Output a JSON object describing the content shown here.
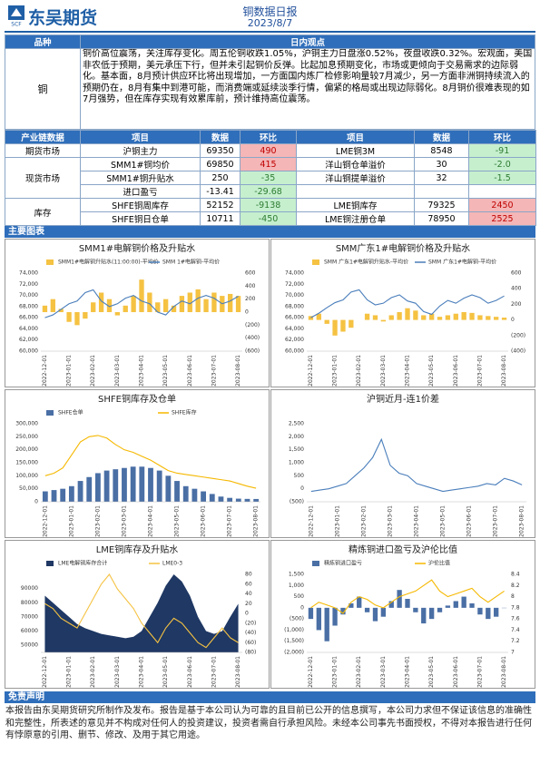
{
  "header": {
    "logo": "东吴期货",
    "logo_mark": "SCF",
    "title": "铜数据日报",
    "date": "2023/8/7"
  },
  "view": {
    "col1": "品种",
    "col2": "日内观点",
    "variety": "铜",
    "text": "铜价高位震荡，关注库存变化。周五伦铜收跌1.05%，沪铜主力日盘涨0.52%，夜盘收跌0.32%。宏观面，美国非农低于预期，美元承压下行，但并未引起铜价反弹。比起加息预期变化，市场或更倾向于交易需求的边际弱化。基本面，8月预计供应环比将出现增加，一方面国内炼厂检修影响量较7月减少，另一方面非洲铜持续流入的预期仍在，8月有集中到港可能，而消费端或延续淡季行情，偏紧的格局或出现边际弱化。8月铜价很难表现的如7月强势，但在库存实现有效累库前，预计维持高位震荡。"
  },
  "table": {
    "header": [
      "产业链数据",
      "项目",
      "数据",
      "环比",
      "项目",
      "数据",
      "环比"
    ],
    "rows": [
      [
        "期货市场",
        "沪铜主力",
        "69350",
        "490",
        "LME铜3M",
        "8548",
        "-91"
      ],
      [
        "现货市场",
        "SMM1#铜均价",
        "69850",
        "415",
        "洋山铜仓单溢价",
        "30",
        "-2.0"
      ],
      [
        "SMM1#铜升贴水",
        "250",
        "-35",
        "洋山铜提单溢价",
        "32",
        "-1.5"
      ],
      [
        "进口盈亏",
        "-13.41",
        "-29.68"
      ],
      [
        "库存",
        "SHFE铜周库存",
        "52152",
        "-9138",
        "LME铜库存",
        "79325",
        "2450"
      ],
      [
        "SHFE铜日仓单",
        "10711",
        "-450",
        "LME铜注册仓单",
        "78950",
        "2525"
      ]
    ]
  },
  "sections": {
    "charts": "主要图表",
    "disclaimer": "免责声明"
  },
  "disclaimer": {
    "text": "本报告由东吴期货研究所制作及发布。报告是基于本公司认为可靠的且目前已公开的信息撰写，本公司力求但不保证该信息的准确性和完整性，所表述的意见并不构成对任何人的投资建议，投资者需自行承担风险。未经本公司事先书面授权，不得对本报告进行任何有悖原意的引用、删节、修改、及用于其它用途。"
  },
  "chart_data": [
    {
      "type": "combo",
      "title": "SMM1#电解铜价格及升贴水",
      "categories": [
        "2022-12-01",
        null,
        null,
        "2023-01-01",
        null,
        null,
        "2023-02-01",
        null,
        null,
        "2023-03-01",
        null,
        null,
        "2023-04-01",
        null,
        null,
        "2023-05-01",
        null,
        null,
        "2023-06-01",
        null,
        null,
        "2023-07-01",
        null,
        null,
        "2023-08-01"
      ],
      "ylim": [
        60000,
        74000
      ],
      "yticks": [
        {
          "value": 74000,
          "label": "74,000"
        },
        {
          "value": 72000,
          "label": "72,000"
        },
        {
          "value": 70000,
          "label": "70,000"
        },
        {
          "value": 68000,
          "label": "68,000"
        },
        {
          "value": 66000,
          "label": "66,000"
        },
        {
          "value": 64000,
          "label": "64,000"
        },
        {
          "value": 62000,
          "label": "62,000"
        },
        {
          "value": 60000,
          "label": "60,000"
        }
      ],
      "y2lim": [
        -600,
        600
      ],
      "y2ticks": [
        600,
        400,
        200,
        0,
        {
          "value": -200,
          "label": "(200)"
        },
        {
          "value": -400,
          "label": "(400)"
        },
        {
          "value": -600,
          "label": "(600)"
        }
      ],
      "series": [
        {
          "name": "SMM1#电解铜升贴水(11:00:00)-平均价",
          "type": "bar",
          "axis": "y2",
          "color": "#f5c242",
          "values": [
            100,
            200,
            50,
            -150,
            -200,
            -100,
            150,
            300,
            200,
            -50,
            100,
            250,
            500,
            300,
            150,
            200,
            100,
            250,
            300,
            350,
            200,
            300,
            250,
            280,
            250
          ]
        },
        {
          "name": "SMM 1#电解铜-平均价",
          "type": "line",
          "color": "#4a7ebb",
          "values": [
            66000,
            66500,
            67500,
            68500,
            69000,
            70500,
            71000,
            69000,
            68000,
            68500,
            69500,
            70000,
            69000,
            68500,
            67000,
            66500,
            68000,
            69000,
            68500,
            69500,
            70000,
            69500,
            68500,
            69000,
            69850
          ]
        }
      ]
    },
    {
      "type": "combo",
      "title": "SMM广东1#电解铜价格及升贴水",
      "categories": [
        "2022-12-01",
        null,
        null,
        "2023-01-01",
        null,
        null,
        "2023-02-01",
        null,
        null,
        "2023-03-01",
        null,
        null,
        "2023-04-01",
        null,
        null,
        "2023-05-01",
        null,
        null,
        "2023-06-01",
        null,
        null,
        "2023-07-01",
        null,
        null,
        "2023-08-01"
      ],
      "ylim": [
        60000,
        74000
      ],
      "yticks": [
        {
          "value": 74000,
          "label": "74,000"
        },
        {
          "value": 72000,
          "label": "72,000"
        },
        {
          "value": 70000,
          "label": "70,000"
        },
        {
          "value": 68000,
          "label": "68,000"
        },
        {
          "value": 66000,
          "label": "66,000"
        },
        {
          "value": 64000,
          "label": "64,000"
        },
        {
          "value": 62000,
          "label": "62,000"
        },
        {
          "value": 60000,
          "label": "60,000"
        }
      ],
      "y2lim": [
        -400,
        600
      ],
      "y2ticks": [
        600,
        400,
        200,
        0,
        {
          "value": -200,
          "label": "(200)"
        },
        {
          "value": -400,
          "label": "(400)"
        }
      ],
      "series": [
        {
          "name": "SMM 广东1#电解铜升贴水-平均价",
          "type": "bar",
          "axis": "y2",
          "color": "#f5c242",
          "values": [
            50,
            80,
            -50,
            -200,
            -150,
            -100,
            0,
            80,
            60,
            -20,
            60,
            100,
            150,
            120,
            60,
            80,
            40,
            60,
            80,
            100,
            90,
            60,
            50,
            40,
            30
          ]
        },
        {
          "name": "SMM 广东1#电解铜-平均价",
          "type": "line",
          "color": "#4a7ebb",
          "values": [
            66000,
            66800,
            67800,
            68700,
            69200,
            70600,
            71000,
            69200,
            68300,
            68600,
            69600,
            70100,
            69000,
            68600,
            67100,
            66600,
            68100,
            69100,
            68600,
            69500,
            70100,
            69600,
            68600,
            69100,
            69900
          ]
        }
      ]
    },
    {
      "type": "combo",
      "title": "SHFE铜库存及仓单",
      "categories": [
        "2022-12-01",
        null,
        null,
        "2023-01-01",
        null,
        null,
        "2023-02-01",
        null,
        null,
        "2023-03-01",
        null,
        null,
        "2023-04-01",
        null,
        null,
        "2023-05-01",
        null,
        null,
        "2023-06-01",
        null,
        null,
        "2023-07-01",
        null,
        null,
        "2023-08-01"
      ],
      "ylim": [
        0,
        300000
      ],
      "yticks": [
        {
          "value": 300000,
          "label": "300,000"
        },
        {
          "value": 250000,
          "label": "250,000"
        },
        {
          "value": 200000,
          "label": "200,000"
        },
        {
          "value": 150000,
          "label": "150,000"
        },
        {
          "value": 100000,
          "label": "100,000"
        },
        {
          "value": 50000,
          "label": "50,000"
        },
        0
      ],
      "series": [
        {
          "name": "SHFE仓单",
          "type": "bar",
          "color": "#4a6fa5",
          "values": [
            40000,
            45000,
            50000,
            60000,
            80000,
            95000,
            110000,
            120000,
            125000,
            130000,
            135000,
            135000,
            130000,
            120000,
            100000,
            80000,
            60000,
            50000,
            40000,
            30000,
            20000,
            15000,
            12000,
            11000,
            10711
          ]
        },
        {
          "name": "SHFE库存",
          "type": "line",
          "color": "#f5b800",
          "values": [
            100000,
            110000,
            130000,
            180000,
            230000,
            250000,
            255000,
            245000,
            220000,
            200000,
            190000,
            175000,
            160000,
            140000,
            120000,
            110000,
            105000,
            100000,
            95000,
            90000,
            85000,
            80000,
            70000,
            60000,
            52152
          ]
        }
      ]
    },
    {
      "type": "line",
      "title": "沪铜近月-连1价差",
      "categories": [
        "2022-12-01",
        null,
        null,
        "2023-01-01",
        null,
        null,
        "2023-02-01",
        null,
        null,
        "2023-03-01",
        null,
        null,
        "2023-04-01",
        null,
        null,
        "2023-05-01",
        null,
        null,
        "2023-06-01",
        null,
        null,
        "2023-07-01",
        null,
        null,
        "2023-08-01"
      ],
      "ylim": [
        -500,
        2500
      ],
      "yticks": [
        {
          "value": 2500,
          "label": "2,500"
        },
        {
          "value": 2000,
          "label": "2,000"
        },
        {
          "value": 1500,
          "label": "1,500"
        },
        {
          "value": 1000,
          "label": "1,000"
        },
        500,
        0,
        {
          "value": -500,
          "label": "(500)"
        }
      ],
      "series": [
        {
          "color": "#4a7ebb",
          "values": [
            -100,
            -50,
            0,
            100,
            200,
            500,
            800,
            1200,
            1900,
            900,
            600,
            500,
            200,
            100,
            0,
            -100,
            -50,
            0,
            50,
            100,
            200,
            150,
            400,
            300,
            150
          ]
        }
      ]
    },
    {
      "type": "combo",
      "title": "LME铜库存及升贴水",
      "categories": [
        "2022-12-01",
        null,
        null,
        "2023-01-01",
        null,
        null,
        "2023-02-01",
        null,
        null,
        "2023-03-01",
        null,
        null,
        "2023-04-01",
        null,
        null,
        "2023-05-01",
        null,
        null,
        "2023-06-01",
        null,
        null,
        "2023-07-01",
        null,
        null,
        "2023-08-01"
      ],
      "ylim": [
        45000,
        100000
      ],
      "yticks": [
        90000,
        80000,
        70000,
        60000,
        50000
      ],
      "y2lim": [
        -80,
        80
      ],
      "y2ticks": [
        80,
        60,
        40,
        20,
        0,
        {
          "value": -20,
          "label": "(20)"
        },
        {
          "value": -40,
          "label": "(40)"
        },
        {
          "value": -60,
          "label": "(60)"
        },
        {
          "value": -80,
          "label": "(80)"
        }
      ],
      "series": [
        {
          "name": "LME电解铜库存合计",
          "type": "area",
          "color": "#1f3864",
          "values": [
            85000,
            80000,
            75000,
            70000,
            65000,
            62000,
            60000,
            58000,
            57000,
            56000,
            55000,
            56000,
            60000,
            70000,
            80000,
            92000,
            100000,
            95000,
            85000,
            70000,
            60000,
            58000,
            60000,
            70000,
            79325
          ]
        },
        {
          "name": "LME0-3",
          "type": "line",
          "axis": "y2",
          "color": "#f5c242",
          "values": [
            20,
            10,
            -10,
            -20,
            -30,
            0,
            30,
            60,
            80,
            50,
            30,
            10,
            -20,
            -40,
            -60,
            -30,
            -10,
            -20,
            -40,
            -60,
            -70,
            -50,
            -30,
            -50,
            -60
          ]
        }
      ]
    },
    {
      "type": "combo",
      "title": "精炼铜进口盈亏及沪伦比值",
      "categories": [
        "2022-12-01",
        null,
        null,
        "2023-01-01",
        null,
        null,
        "2023-02-01",
        null,
        null,
        "2023-03-01",
        null,
        null,
        "2023-04-01",
        null,
        null,
        "2023-05-01",
        null,
        null,
        "2023-06-01",
        null,
        null,
        "2023-07-01",
        null,
        null,
        "2023-08-01"
      ],
      "ylim": [
        -2000,
        1500
      ],
      "yticks": [
        {
          "value": 1500,
          "label": "1,500"
        },
        {
          "value": 1000,
          "label": "1,000"
        },
        500,
        0,
        {
          "value": -500,
          "label": "(500)"
        },
        {
          "value": -1000,
          "label": "(1,000)"
        },
        {
          "value": -1500,
          "label": "(1,500)"
        },
        {
          "value": -2000,
          "label": "(2,000)"
        }
      ],
      "y2lim": [
        7,
        8.4
      ],
      "y2ticks": [
        8.4,
        8.2,
        8,
        7.8,
        7.6,
        7.4,
        7.2,
        7
      ],
      "series": [
        {
          "name": "精炼铜进口盈亏",
          "type": "bar",
          "color": "#4a6fa5",
          "values": [
            -500,
            -1000,
            -1500,
            -800,
            -300,
            200,
            500,
            -200,
            -600,
            -400,
            300,
            800,
            400,
            -200,
            -700,
            -500,
            -200,
            100,
            300,
            500,
            200,
            -300,
            -500,
            -400,
            -13
          ]
        },
        {
          "name": "沪伦比值",
          "type": "line",
          "axis": "y2",
          "color": "#f5b800",
          "values": [
            7.8,
            7.9,
            7.85,
            7.8,
            7.7,
            7.9,
            8.0,
            7.95,
            7.85,
            7.8,
            7.9,
            8.0,
            8.05,
            8.1,
            8.2,
            8.3,
            8.1,
            8.0,
            8.05,
            8.1,
            8.15,
            8.0,
            7.9,
            8.0,
            8.1
          ]
        }
      ]
    }
  ]
}
